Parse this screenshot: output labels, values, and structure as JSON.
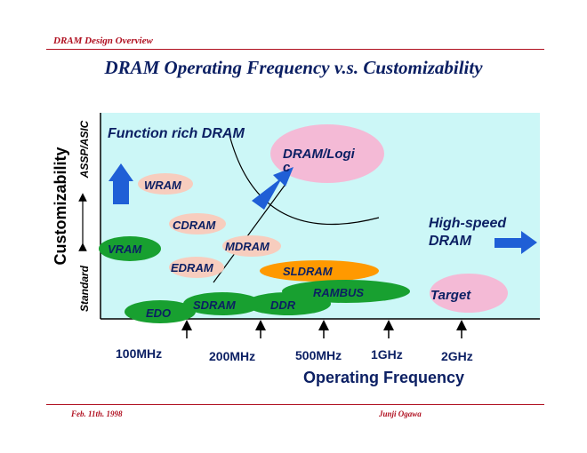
{
  "header": {
    "section": "DRAM Design Overview"
  },
  "title": "DRAM Operating Frequency v.s. Customizability",
  "footer": {
    "date": "Feb.  11th. 1998",
    "author": "Junji  Ogawa"
  },
  "y_axis": {
    "title": "Customizability",
    "top_label": "ASSP/ASIC",
    "bottom_label": "Standard"
  },
  "x_axis": {
    "title": "Operating Frequency",
    "ticks": [
      "100MHz",
      "200MHz",
      "500MHz",
      "1GHz",
      "2GHz"
    ]
  },
  "regions": {
    "function_rich": "Function rich DRAM",
    "high_speed_line1": "High-speed",
    "high_speed_line2": "DRAM",
    "dram_logic_line1": "DRAM/Logi",
    "dram_logic_line2": "c",
    "target": "Target"
  },
  "dram_types": {
    "wram": "WRAM",
    "cdram": "CDRAM",
    "vram": "VRAM",
    "mdram": "MDRAM",
    "edram": "EDRAM",
    "sldram": "SLDRAM",
    "rambus": "RAMBUS",
    "ddr": "DDR",
    "sdram": "SDRAM",
    "edo": "EDO"
  },
  "colors": {
    "header_red": "#b01020",
    "title_navy": "#0b1f63",
    "plot_bg": "#ccf7f7",
    "pink": "#f4bad6",
    "peach": "#f7cdbe",
    "green": "#18a030",
    "orange": "#ff9900",
    "arrow_blue": "#1f5fd6"
  }
}
